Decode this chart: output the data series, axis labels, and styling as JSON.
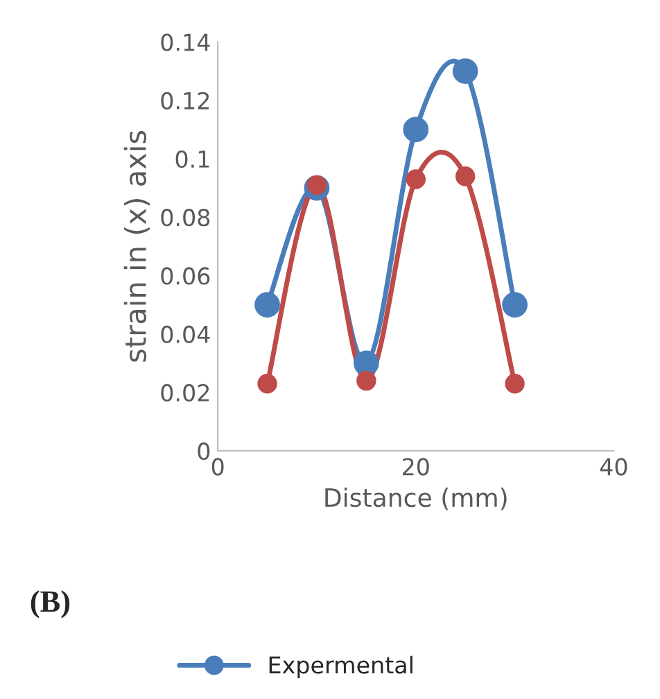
{
  "chart_data": {
    "type": "line",
    "xlabel": "Distance (mm)",
    "ylabel": "strain in (x) axis",
    "x": [
      5,
      10,
      15,
      20,
      25,
      30
    ],
    "series": [
      {
        "name": "Expermental",
        "color": "#4a7ebb",
        "values": [
          0.05,
          0.09,
          0.03,
          0.11,
          0.13,
          0.05
        ]
      },
      {
        "color": "#be4b48",
        "values": [
          0.023,
          0.091,
          0.024,
          0.093,
          0.094,
          0.023
        ]
      }
    ],
    "xlim": [
      0,
      40
    ],
    "xticks": [
      0,
      20,
      40
    ],
    "ylim": [
      0,
      0.14
    ],
    "yticks": [
      0,
      0.02,
      0.04,
      0.06,
      0.08,
      0.1,
      0.12,
      0.14
    ],
    "marker": "circle",
    "line_style": "solid",
    "legend": "bottom",
    "grid": false,
    "annotations": [
      "(B)"
    ]
  }
}
